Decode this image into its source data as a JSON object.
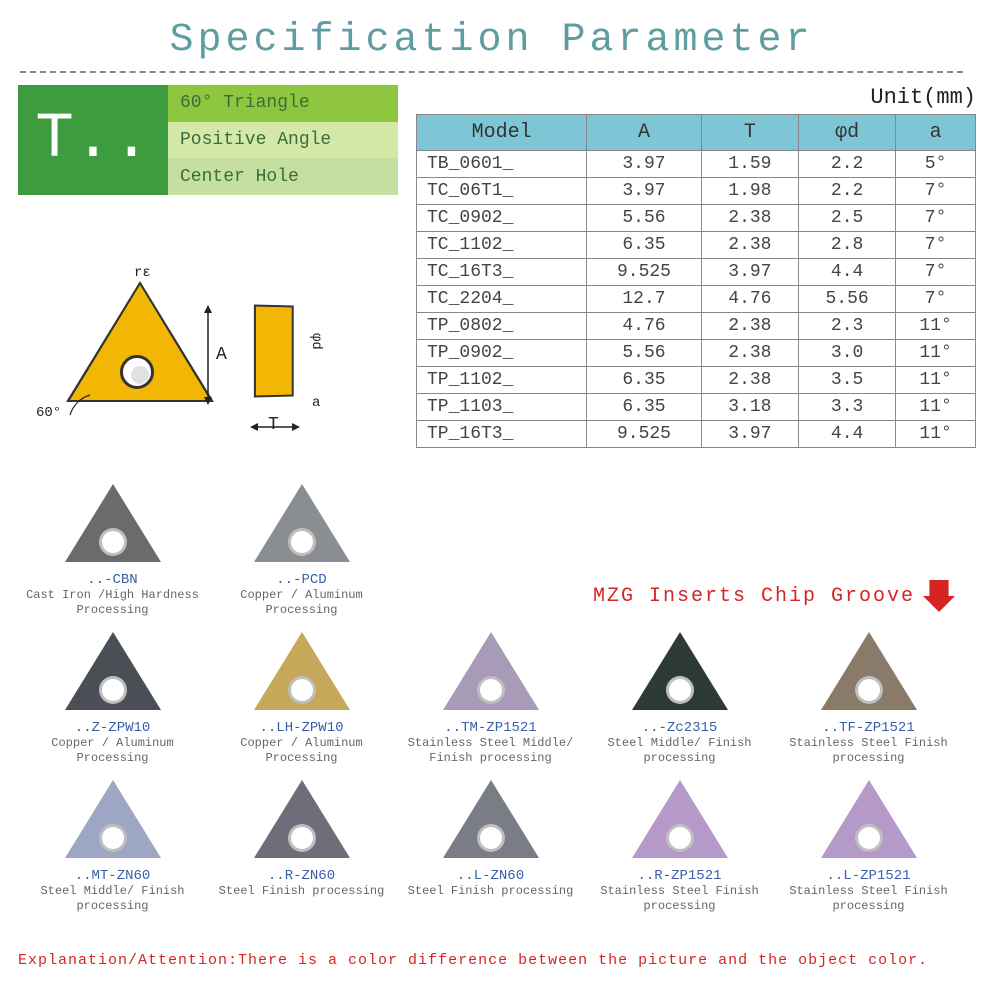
{
  "title": "Specification Parameter",
  "type_code": "T..",
  "type_lines": [
    "60° Triangle",
    "Positive Angle",
    "Center Hole"
  ],
  "unit_label": "Unit(mm)",
  "table": {
    "columns": [
      "Model",
      "A",
      "T",
      "φd",
      "a"
    ],
    "header_bg": "#7ec5d6",
    "rows": [
      [
        "TB_0601_",
        "3.97",
        "1.59",
        "2.2",
        "5°"
      ],
      [
        "TC_06T1_",
        "3.97",
        "1.98",
        "2.2",
        "7°"
      ],
      [
        "TC_0902_",
        "5.56",
        "2.38",
        "2.5",
        "7°"
      ],
      [
        "TC_1102_",
        "6.35",
        "2.38",
        "2.8",
        "7°"
      ],
      [
        "TC_16T3_",
        "9.525",
        "3.97",
        "4.4",
        "7°"
      ],
      [
        "TC_2204_",
        "12.7",
        "4.76",
        "5.56",
        "7°"
      ],
      [
        "TP_0802_",
        "4.76",
        "2.38",
        "2.3",
        "11°"
      ],
      [
        "TP_0902_",
        "5.56",
        "2.38",
        "3.0",
        "11°"
      ],
      [
        "TP_1102_",
        "6.35",
        "2.38",
        "3.5",
        "11°"
      ],
      [
        "TP_1103_",
        "6.35",
        "3.18",
        "3.3",
        "11°"
      ],
      [
        "TP_16T3_",
        "9.525",
        "3.97",
        "4.4",
        "11°"
      ]
    ]
  },
  "diagram": {
    "triangle_fill": "#f2b705",
    "labels": {
      "re": "rε",
      "A": "A",
      "sixty": "60°",
      "phid": "φd",
      "a": "a",
      "T": "T"
    }
  },
  "chip_groove_label": "MZG Inserts Chip Groove",
  "arrow_color": "#d62424",
  "inserts": {
    "row1": [
      {
        "code": "..-CBN",
        "desc": "Cast Iron /High Hardness Processing",
        "color": "#6b6b6b"
      },
      {
        "code": "..-PCD",
        "desc": "Copper / Aluminum Processing",
        "color": "#8a8d92"
      }
    ],
    "row2": [
      {
        "code": "..Z-ZPW10",
        "desc": "Copper / Aluminum Processing",
        "color": "#4a4e55"
      },
      {
        "code": "..LH-ZPW10",
        "desc": "Copper / Aluminum Processing",
        "color": "#c7a85a"
      },
      {
        "code": "..TM-ZP1521",
        "desc": "Stainless Steel Middle/ Finish processing",
        "color": "#a89bb8"
      },
      {
        "code": "..-Zc2315",
        "desc": "Steel Middle/ Finish processing",
        "color": "#2e3a34"
      },
      {
        "code": "..TF-ZP1521",
        "desc": "Stainless Steel Finish processing",
        "color": "#8a7a6a"
      }
    ],
    "row3": [
      {
        "code": "..MT-ZN60",
        "desc": "Steel Middle/ Finish processing",
        "color": "#9da6c2"
      },
      {
        "code": "..R-ZN60",
        "desc": "Steel Finish processing",
        "color": "#6e6e7a"
      },
      {
        "code": "..L-ZN60",
        "desc": "Steel Finish processing",
        "color": "#7a7d85"
      },
      {
        "code": "..R-ZP1521",
        "desc": "Stainless Steel Finish processing",
        "color": "#b59ac9"
      },
      {
        "code": "..L-ZP1521",
        "desc": "Stainless Steel Finish processing",
        "color": "#b59ac9"
      }
    ]
  },
  "footer_note": "Explanation/Attention:There is a color difference between the picture and the object color.",
  "colors": {
    "title": "#5f9ea0",
    "green_dark": "#3d9c3d",
    "green_mid": "#8fc63f",
    "green_light": "#d4e8a8",
    "code_blue": "#3a5fa8",
    "red": "#d62424"
  }
}
